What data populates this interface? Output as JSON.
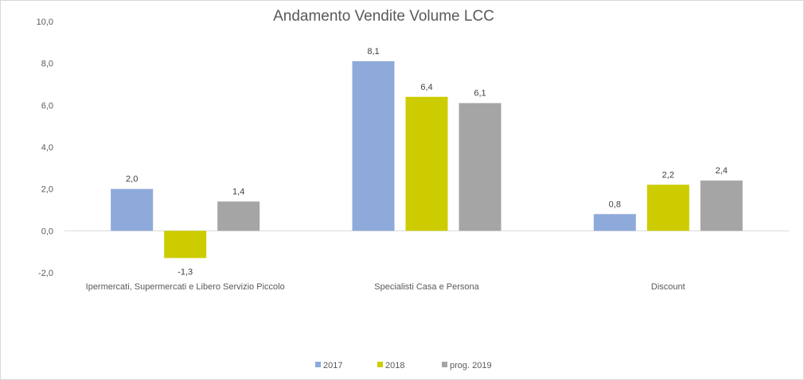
{
  "chart_data": {
    "type": "bar",
    "title": "Andamento Vendite Volume LCC",
    "categories": [
      "Ipermercati, Supermercati e Libero Servizio Piccolo",
      "Specialisti Casa e Persona",
      "Discount"
    ],
    "series": [
      {
        "name": "2017",
        "color": "#8eaadb",
        "values": [
          2.0,
          8.1,
          0.8
        ],
        "labels": [
          "2,0",
          "8,1",
          "0,8"
        ]
      },
      {
        "name": "2018",
        "color": "#cccc00",
        "values": [
          -1.3,
          6.4,
          2.2
        ],
        "labels": [
          "-1,3",
          "6,4",
          "2,2"
        ]
      },
      {
        "name": "prog. 2019",
        "color": "#a5a5a5",
        "values": [
          1.4,
          6.1,
          2.4
        ],
        "labels": [
          "1,4",
          "6,1",
          "2,4"
        ]
      }
    ],
    "ylim": [
      -2.0,
      10.0
    ],
    "yticks": [
      -2.0,
      0.0,
      2.0,
      4.0,
      6.0,
      8.0,
      10.0
    ],
    "ytick_labels": [
      "-2,0",
      "0,0",
      "2,0",
      "4,0",
      "6,0",
      "8,0",
      "10,0"
    ],
    "grid": false,
    "legend": "bottom"
  }
}
